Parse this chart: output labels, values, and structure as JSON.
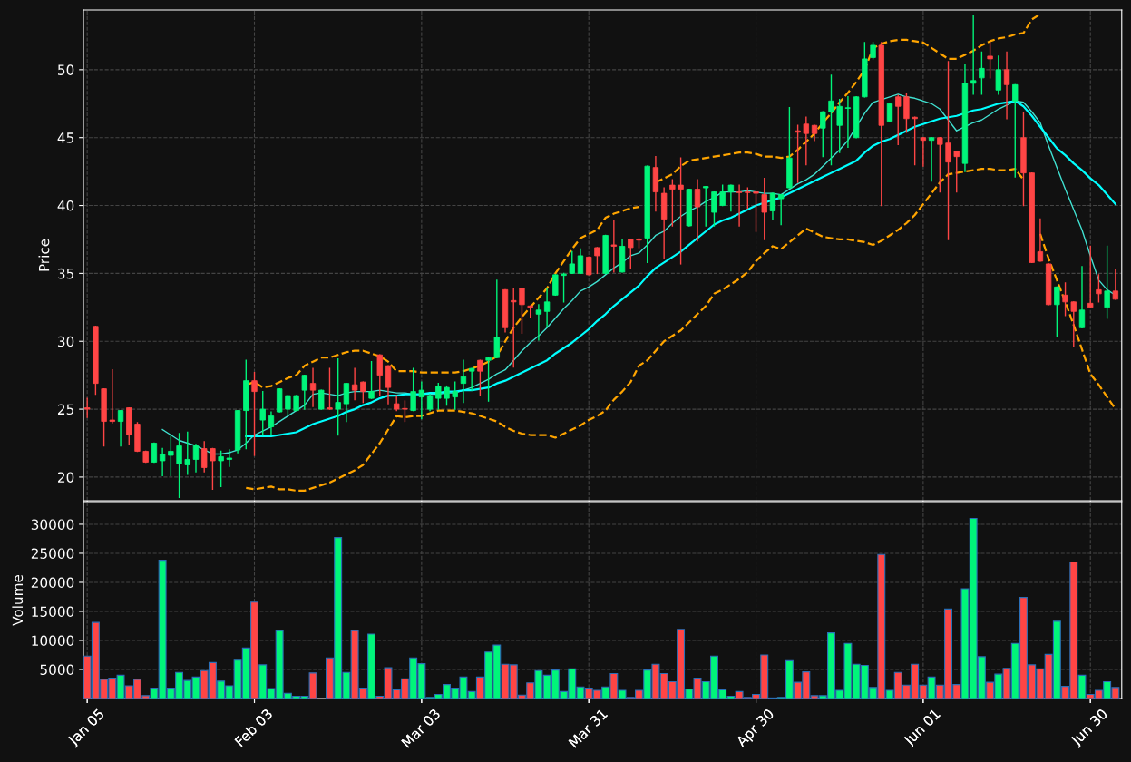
{
  "chart_data": [
    {
      "type": "candlestick",
      "ylabel": "Price",
      "categories": [
        "Jan 05",
        null,
        null,
        null,
        null,
        null,
        null,
        null,
        null,
        null,
        null,
        null,
        null,
        null,
        null,
        null,
        null,
        null,
        null,
        null,
        "Feb 03",
        null,
        null,
        null,
        null,
        null,
        null,
        null,
        null,
        null,
        null,
        null,
        null,
        null,
        null,
        null,
        null,
        null,
        null,
        null,
        "Mar 03",
        null,
        null,
        null,
        null,
        null,
        null,
        null,
        null,
        null,
        null,
        null,
        null,
        null,
        null,
        null,
        null,
        null,
        null,
        null,
        "Mar 31",
        null,
        null,
        null,
        null,
        null,
        null,
        null,
        null,
        null,
        null,
        null,
        null,
        null,
        null,
        null,
        null,
        null,
        null,
        null,
        "Apr 30",
        null,
        null,
        null,
        null,
        null,
        null,
        null,
        null,
        null,
        null,
        null,
        null,
        null,
        null,
        null,
        null,
        null,
        null,
        null,
        "Jun 01",
        null,
        null,
        null,
        null,
        null,
        null,
        null,
        null,
        null,
        null,
        null,
        null,
        null,
        null,
        null,
        null,
        null,
        null,
        null,
        "Jun 30",
        null,
        null,
        null
      ],
      "ohlc": [
        [
          25.1,
          25.8,
          24.4,
          25.0
        ],
        [
          31.1,
          31.1,
          26.1,
          26.9
        ],
        [
          26.5,
          26.5,
          22.3,
          24.1
        ],
        [
          24.2,
          27.9,
          24.0,
          24.1
        ],
        [
          24.1,
          24.9,
          22.3,
          24.9
        ],
        [
          25.1,
          25.1,
          22.4,
          23.1
        ],
        [
          23.9,
          24.0,
          21.9,
          21.9
        ],
        [
          21.9,
          21.9,
          21.1,
          21.1
        ],
        [
          21.1,
          22.5,
          21.1,
          22.5
        ],
        [
          21.2,
          22.1,
          20.1,
          21.7
        ],
        [
          21.6,
          23.0,
          20.1,
          21.9
        ],
        [
          21.0,
          23.2,
          18.5,
          22.3
        ],
        [
          20.9,
          23.3,
          20.2,
          21.3
        ],
        [
          21.3,
          22.4,
          20.4,
          22.3
        ],
        [
          22.1,
          22.6,
          20.4,
          20.7
        ],
        [
          22.1,
          22.1,
          19.1,
          21.2
        ],
        [
          21.2,
          21.9,
          19.3,
          21.5
        ],
        [
          21.3,
          22.0,
          20.8,
          21.4
        ],
        [
          22.0,
          24.9,
          21.8,
          24.9
        ],
        [
          24.9,
          28.6,
          22.1,
          27.1
        ],
        [
          27.1,
          27.7,
          21.6,
          26.3
        ],
        [
          24.2,
          26.3,
          23.1,
          25.0
        ],
        [
          23.7,
          24.8,
          23.1,
          24.5
        ],
        [
          24.8,
          26.5,
          24.8,
          26.5
        ],
        [
          25.0,
          26.0,
          24.6,
          26.0
        ],
        [
          24.9,
          26.0,
          24.9,
          26.0
        ],
        [
          26.4,
          27.5,
          25.0,
          27.5
        ],
        [
          26.9,
          28.0,
          25.2,
          26.4
        ],
        [
          25.0,
          26.4,
          25.0,
          26.4
        ],
        [
          25.1,
          28.0,
          25.0,
          25.0
        ],
        [
          25.0,
          28.7,
          23.1,
          25.5
        ],
        [
          25.4,
          26.9,
          24.1,
          26.9
        ],
        [
          26.8,
          28.0,
          25.7,
          26.4
        ],
        [
          27.0,
          27.0,
          25.5,
          26.3
        ],
        [
          25.8,
          28.5,
          25.8,
          26.3
        ],
        [
          29.0,
          29.0,
          26.0,
          27.5
        ],
        [
          28.2,
          28.2,
          25.4,
          26.6
        ],
        [
          25.4,
          26.0,
          24.9,
          25.0
        ],
        [
          25.05,
          25.6,
          24.1,
          25.0
        ],
        [
          24.9,
          28.0,
          24.9,
          26.3
        ],
        [
          25.9,
          27.0,
          24.3,
          26.4
        ],
        [
          25.0,
          26.1,
          24.9,
          26.0
        ],
        [
          25.8,
          26.9,
          25.0,
          26.7
        ],
        [
          25.8,
          26.7,
          25.3,
          26.6
        ],
        [
          25.9,
          27.0,
          25.0,
          26.3
        ],
        [
          26.9,
          28.6,
          25.5,
          27.4
        ],
        [
          27.8,
          28.0,
          26.4,
          28.0
        ],
        [
          28.6,
          28.6,
          26.0,
          27.8
        ],
        [
          28.6,
          28.8,
          25.6,
          28.8
        ],
        [
          28.8,
          34.5,
          28.8,
          30.3
        ],
        [
          33.8,
          33.8,
          30.7,
          31.0
        ],
        [
          33.0,
          33.9,
          28.1,
          32.9
        ],
        [
          33.9,
          33.9,
          30.6,
          32.7
        ],
        [
          32.6,
          32.6,
          31.8,
          32.5
        ],
        [
          32.0,
          32.7,
          30.1,
          32.3
        ],
        [
          32.2,
          33.9,
          31.1,
          32.9
        ],
        [
          33.4,
          34.9,
          33.4,
          34.9
        ],
        [
          34.85,
          35.0,
          32.9,
          34.95
        ],
        [
          35.0,
          36.6,
          35.0,
          35.7
        ],
        [
          35.0,
          36.8,
          35.0,
          36.3
        ],
        [
          36.2,
          36.2,
          34.9,
          34.9
        ],
        [
          36.9,
          36.9,
          35.0,
          36.3
        ],
        [
          35.0,
          37.8,
          35.0,
          37.8
        ],
        [
          37.1,
          38.9,
          35.1,
          37.0
        ],
        [
          35.1,
          37.5,
          35.1,
          37.0
        ],
        [
          37.5,
          37.5,
          35.4,
          36.9
        ],
        [
          37.5,
          37.55,
          36.9,
          37.45
        ],
        [
          37.6,
          42.9,
          35.8,
          42.9
        ],
        [
          42.8,
          43.6,
          39.6,
          41.0
        ],
        [
          40.9,
          41.3,
          36.1,
          39.0
        ],
        [
          41.5,
          41.9,
          38.5,
          41.2
        ],
        [
          41.5,
          43.5,
          35.7,
          41.2
        ],
        [
          38.5,
          41.2,
          38.5,
          41.2
        ],
        [
          41.2,
          41.9,
          37.4,
          39.9
        ],
        [
          41.3,
          41.4,
          38.5,
          41.4
        ],
        [
          39.5,
          41.0,
          38.5,
          41.0
        ],
        [
          40.0,
          41.5,
          40.0,
          41.0
        ],
        [
          41.0,
          41.5,
          39.6,
          41.5
        ],
        [
          41.0,
          41.5,
          38.5,
          40.95
        ],
        [
          41.0,
          41.3,
          39.8,
          40.95
        ],
        [
          41.0,
          41.0,
          38.1,
          40.9
        ],
        [
          40.8,
          42.0,
          37.5,
          39.5
        ],
        [
          39.6,
          40.9,
          39.0,
          40.9
        ],
        [
          40.5,
          40.8,
          38.6,
          40.8
        ],
        [
          41.3,
          47.2,
          41.3,
          43.5
        ],
        [
          45.5,
          45.9,
          41.7,
          45.4
        ],
        [
          46.0,
          46.5,
          43.0,
          45.3
        ],
        [
          45.9,
          45.9,
          44.8,
          45.3
        ],
        [
          45.7,
          46.9,
          43.6,
          46.9
        ],
        [
          46.9,
          49.6,
          43.0,
          47.7
        ],
        [
          45.9,
          47.8,
          43.9,
          47.3
        ],
        [
          47.15,
          48.0,
          44.3,
          47.2
        ],
        [
          45.0,
          48.0,
          45.0,
          48.0
        ],
        [
          48.0,
          52.0,
          48.0,
          50.8
        ],
        [
          50.9,
          52.0,
          50.8,
          51.8
        ],
        [
          51.8,
          52.0,
          40.0,
          45.9
        ],
        [
          46.2,
          47.5,
          46.2,
          47.5
        ],
        [
          48.0,
          48.1,
          44.5,
          47.3
        ],
        [
          48.0,
          48.2,
          45.4,
          46.4
        ],
        [
          46.5,
          46.5,
          43.0,
          46.4
        ],
        [
          45.0,
          45.0,
          42.9,
          44.8
        ],
        [
          44.8,
          45.0,
          41.8,
          45.0
        ],
        [
          45.0,
          45.0,
          41.0,
          44.5
        ],
        [
          44.6,
          50.6,
          37.5,
          43.2
        ],
        [
          44.0,
          44.0,
          41.0,
          43.6
        ],
        [
          43.1,
          50.4,
          42.5,
          49.0
        ],
        [
          49.0,
          54.0,
          48.2,
          49.2
        ],
        [
          49.4,
          51.3,
          48.2,
          50.1
        ],
        [
          51.0,
          52.0,
          49.4,
          50.8
        ],
        [
          48.5,
          51.0,
          48.2,
          50.0
        ],
        [
          50.0,
          51.3,
          46.4,
          48.9
        ],
        [
          47.7,
          48.9,
          42.1,
          48.9
        ],
        [
          45.0,
          46.8,
          40.0,
          42.4
        ],
        [
          42.4,
          42.4,
          35.8,
          35.8
        ],
        [
          36.6,
          39.0,
          35.9,
          35.9
        ],
        [
          35.7,
          35.7,
          32.7,
          32.7
        ],
        [
          32.7,
          34.0,
          30.4,
          34.0
        ],
        [
          33.4,
          34.3,
          31.9,
          32.9
        ],
        [
          32.9,
          32.9,
          29.6,
          32.2
        ],
        [
          31.0,
          35.5,
          31.0,
          32.3
        ],
        [
          32.8,
          37.0,
          32.5,
          32.5
        ],
        [
          33.8,
          34.9,
          32.9,
          33.5
        ],
        [
          32.5,
          37.0,
          31.7,
          33.7
        ],
        [
          33.7,
          35.3,
          33.1,
          33.1
        ]
      ],
      "colors": [
        "#ff4545",
        "#ff4545",
        "#ff4545",
        "#ff4545",
        "#00f57a",
        "#ff4545",
        "#ff4545",
        "#ff4545",
        "#00f57a",
        "#00f57a",
        "#00f57a",
        "#00f57a",
        "#00f57a",
        "#00f57a",
        "#ff4545",
        "#ff4545",
        "#00f57a",
        "#00f57a",
        "#00f57a",
        "#00f57a",
        "#ff4545",
        "#00f57a",
        "#00f57a",
        "#00f57a",
        "#00f57a",
        "#00f57a",
        "#00f57a",
        "#ff4545",
        "#00f57a",
        "#ff4545",
        "#00f57a",
        "#00f57a",
        "#ff4545",
        "#ff4545",
        "#00f57a",
        "#ff4545",
        "#ff4545",
        "#ff4545",
        "#ff4545",
        "#00f57a",
        "#00f57a",
        "#00f57a",
        "#00f57a",
        "#00f57a",
        "#00f57a",
        "#00f57a",
        "#00f57a",
        "#ff4545",
        "#00f57a",
        "#00f57a",
        "#ff4545",
        "#ff4545",
        "#ff4545",
        "#ff4545",
        "#00f57a",
        "#00f57a",
        "#00f57a",
        "#00f57a",
        "#00f57a",
        "#00f57a",
        "#ff4545",
        "#ff4545",
        "#00f57a",
        "#ff4545",
        "#00f57a",
        "#ff4545",
        "#ff4545",
        "#00f57a",
        "#ff4545",
        "#ff4545",
        "#ff4545",
        "#ff4545",
        "#00f57a",
        "#ff4545",
        "#00f57a",
        "#00f57a",
        "#00f57a",
        "#00f57a",
        "#ff4545",
        "#ff4545",
        "#ff4545",
        "#ff4545",
        "#00f57a",
        "#00f57a",
        "#00f57a",
        "#ff4545",
        "#ff4545",
        "#ff4545",
        "#00f57a",
        "#00f57a",
        "#00f57a",
        "#00f57a",
        "#00f57a",
        "#00f57a",
        "#00f57a",
        "#ff4545",
        "#00f57a",
        "#ff4545",
        "#ff4545",
        "#ff4545",
        "#ff4545",
        "#00f57a",
        "#ff4545",
        "#ff4545",
        "#ff4545",
        "#00f57a",
        "#00f57a",
        "#00f57a",
        "#ff4545",
        "#00f57a",
        "#ff4545",
        "#00f57a",
        "#ff4545",
        "#ff4545",
        "#ff4545",
        "#ff4545",
        "#00f57a",
        "#ff4545",
        "#ff4545",
        "#00f57a",
        "#ff4545",
        "#ff4545",
        "#00f57a",
        "#ff4545"
      ],
      "series": [
        {
          "type": "line",
          "color": "#40e0d0",
          "line_style": "solid",
          "values": [
            null,
            null,
            null,
            null,
            null,
            null,
            null,
            null,
            null,
            23.5,
            23.1,
            22.7,
            22.5,
            22.3,
            22.0,
            21.7,
            21.7,
            21.8,
            22.0,
            22.5,
            23.1,
            23.4,
            23.7,
            24.1,
            24.5,
            24.9,
            25.3,
            26.1,
            26.2,
            26.1,
            26.0,
            26.2,
            26.3,
            26.3,
            26.3,
            26.4,
            26.3,
            26.2,
            26.2,
            26.1,
            26.1,
            26.1,
            26.1,
            26.2,
            26.2,
            26.4,
            26.6,
            26.9,
            27.2,
            27.6,
            27.9,
            28.6,
            29.3,
            29.9,
            30.4,
            31.0,
            31.7,
            32.4,
            33.0,
            33.7,
            34.0,
            34.4,
            34.9,
            35.4,
            35.8,
            36.3,
            36.5,
            37.1,
            37.8,
            38.1,
            38.7,
            39.2,
            39.6,
            39.9,
            40.3,
            40.6,
            41.0,
            41.0,
            41.0,
            41.1,
            41.0,
            40.9,
            40.9,
            40.8,
            41.2,
            41.6,
            41.9,
            42.3,
            42.9,
            43.5,
            44.1,
            44.8,
            45.8,
            46.8,
            47.6,
            47.8,
            48.0,
            48.2,
            48.0,
            47.9,
            47.7,
            47.5,
            47.1,
            46.3,
            45.5,
            45.8,
            46.1,
            46.3,
            46.7,
            47.1,
            47.4,
            47.7,
            47.6,
            46.9,
            46.1,
            44.4,
            42.8,
            41.2,
            39.7,
            38.2,
            36.3,
            34.5,
            33.8,
            33.4
          ]
        },
        {
          "type": "line",
          "color": "#00ffff",
          "line_style": "solid",
          "values": [
            null,
            null,
            null,
            null,
            null,
            null,
            null,
            null,
            null,
            null,
            null,
            null,
            null,
            null,
            null,
            null,
            null,
            null,
            null,
            23.0,
            23.0,
            23.0,
            23.0,
            23.1,
            23.2,
            23.3,
            23.6,
            23.9,
            24.1,
            24.3,
            24.5,
            24.8,
            25.0,
            25.3,
            25.5,
            25.8,
            26.0,
            26.0,
            26.1,
            26.1,
            26.1,
            26.2,
            26.2,
            26.3,
            26.3,
            26.4,
            26.4,
            26.5,
            26.6,
            26.9,
            27.1,
            27.4,
            27.7,
            28.0,
            28.3,
            28.6,
            29.1,
            29.5,
            29.9,
            30.4,
            30.9,
            31.5,
            32.0,
            32.6,
            33.1,
            33.6,
            34.1,
            34.8,
            35.4,
            35.8,
            36.2,
            36.6,
            37.1,
            37.6,
            38.1,
            38.6,
            38.9,
            39.1,
            39.4,
            39.7,
            40.0,
            40.2,
            40.4,
            40.6,
            40.9,
            41.2,
            41.5,
            41.8,
            42.1,
            42.4,
            42.7,
            43.0,
            43.3,
            43.9,
            44.4,
            44.7,
            44.9,
            45.2,
            45.5,
            45.8,
            46.0,
            46.2,
            46.4,
            46.5,
            46.6,
            46.8,
            47.0,
            47.1,
            47.3,
            47.5,
            47.6,
            47.7,
            47.3,
            46.6,
            45.8,
            45.0,
            44.2,
            43.7,
            43.1,
            42.6,
            42.0,
            41.5,
            40.8,
            40.1
          ]
        },
        {
          "type": "line",
          "color": "#ffa500",
          "line_style": "dashed",
          "values": [
            null,
            null,
            null,
            null,
            null,
            null,
            null,
            null,
            null,
            null,
            null,
            null,
            null,
            null,
            null,
            null,
            null,
            null,
            null,
            26.8,
            27.0,
            26.6,
            26.7,
            27.0,
            27.3,
            27.5,
            28.2,
            28.5,
            28.8,
            28.8,
            29.0,
            29.2,
            29.3,
            29.3,
            29.1,
            28.9,
            28.5,
            27.8,
            27.8,
            27.8,
            27.7,
            27.7,
            27.7,
            27.7,
            27.7,
            27.8,
            28.0,
            28.2,
            28.5,
            28.9,
            30.0,
            31.0,
            31.8,
            32.5,
            33.2,
            33.9,
            35.0,
            35.9,
            36.8,
            37.6,
            37.9,
            38.2,
            39.1,
            39.4,
            39.6,
            39.8,
            39.9,
            null,
            41.7,
            42.0,
            42.3,
            42.9,
            43.3,
            43.4,
            43.5,
            43.6,
            43.7,
            43.8,
            43.9,
            43.9,
            43.8,
            43.6,
            43.6,
            43.5,
            43.6,
            44.1,
            44.7,
            45.3,
            46.1,
            46.8,
            47.6,
            48.3,
            49.1,
            50.0,
            51.6,
            51.9,
            52.1,
            52.2,
            52.2,
            52.1,
            52.0,
            51.6,
            51.2,
            50.8,
            50.8,
            51.1,
            51.4,
            51.8,
            52.1,
            52.3,
            52.4,
            52.6,
            52.7,
            53.7,
            54.1,
            null,
            null,
            null,
            null,
            null,
            null,
            null,
            null,
            null
          ]
        },
        {
          "type": "line",
          "color": "#ffa500",
          "line_style": "dashed",
          "values": [
            null,
            null,
            null,
            null,
            null,
            null,
            null,
            null,
            null,
            null,
            null,
            null,
            null,
            null,
            null,
            null,
            null,
            null,
            null,
            19.2,
            19.1,
            19.2,
            19.3,
            19.1,
            19.1,
            19.0,
            19.0,
            19.2,
            19.4,
            19.6,
            19.9,
            20.2,
            20.5,
            20.9,
            21.7,
            22.5,
            23.5,
            24.5,
            24.4,
            24.5,
            24.5,
            24.7,
            24.9,
            24.9,
            24.9,
            24.8,
            24.7,
            24.5,
            24.3,
            24.1,
            23.7,
            23.4,
            23.2,
            23.1,
            23.1,
            23.1,
            22.9,
            23.2,
            23.5,
            23.8,
            24.2,
            24.5,
            24.9,
            25.7,
            26.3,
            27.0,
            28.2,
            28.6,
            29.3,
            30.0,
            30.4,
            30.8,
            31.4,
            32.0,
            32.6,
            33.5,
            33.8,
            34.2,
            34.6,
            35.1,
            35.9,
            36.5,
            37.0,
            36.8,
            37.3,
            37.8,
            38.3,
            38.0,
            37.7,
            37.6,
            37.5,
            37.5,
            37.4,
            37.3,
            37.1,
            37.4,
            37.8,
            38.2,
            38.7,
            39.3,
            40.1,
            40.9,
            41.7,
            42.3,
            42.4,
            42.5,
            42.6,
            42.7,
            42.7,
            42.6,
            42.6,
            42.7,
            41.9,
            null,
            37.9,
            36.1,
            34.5,
            32.9,
            31.2,
            29.4,
            27.6,
            26.8,
            25.9,
            25.0
          ]
        }
      ],
      "ylim": [
        18.26,
        54.4
      ],
      "yticks": [
        20,
        25,
        30,
        35,
        40,
        45,
        50
      ],
      "grid": true,
      "tick_labels": "y"
    },
    {
      "type": "bar",
      "ylabel": "Volume",
      "categories": [
        "Jan 05",
        null,
        null,
        null,
        null,
        null,
        null,
        null,
        null,
        null,
        null,
        null,
        null,
        null,
        null,
        null,
        null,
        null,
        null,
        null,
        "Feb 03",
        null,
        null,
        null,
        null,
        null,
        null,
        null,
        null,
        null,
        null,
        null,
        null,
        null,
        null,
        null,
        null,
        null,
        null,
        null,
        "Mar 03",
        null,
        null,
        null,
        null,
        null,
        null,
        null,
        null,
        null,
        null,
        null,
        null,
        null,
        null,
        null,
        null,
        null,
        null,
        null,
        "Mar 31",
        null,
        null,
        null,
        null,
        null,
        null,
        null,
        null,
        null,
        null,
        null,
        null,
        null,
        null,
        null,
        null,
        null,
        null,
        null,
        "Apr 30",
        null,
        null,
        null,
        null,
        null,
        null,
        null,
        null,
        null,
        null,
        null,
        null,
        null,
        null,
        null,
        null,
        null,
        null,
        null,
        "Jun 01",
        null,
        null,
        null,
        null,
        null,
        null,
        null,
        null,
        null,
        null,
        null,
        null,
        null,
        null,
        null,
        null,
        null,
        null,
        null,
        "Jun 30",
        null,
        null,
        null
      ],
      "values": [
        7300,
        13100,
        3300,
        3500,
        4000,
        2200,
        3300,
        500,
        1800,
        23800,
        1800,
        4500,
        3100,
        3700,
        4800,
        6200,
        3000,
        2200,
        6600,
        8700,
        16600,
        5800,
        1700,
        11700,
        900,
        400,
        400,
        4400,
        null,
        7000,
        27700,
        4500,
        11700,
        1800,
        11100,
        400,
        5300,
        1500,
        3400,
        7000,
        6000,
        200,
        700,
        2400,
        1800,
        3700,
        1200,
        3700,
        8000,
        9200,
        5900,
        5800,
        600,
        2700,
        4800,
        4000,
        4900,
        1200,
        5100,
        2000,
        1800,
        1400,
        2000,
        4300,
        1400,
        200,
        1400,
        4900,
        5900,
        4300,
        2900,
        11900,
        1600,
        3500,
        2900,
        7300,
        1500,
        400,
        1200,
        200,
        700,
        7500,
        100,
        200,
        6500,
        2800,
        4600,
        500,
        500,
        11300,
        1400,
        9500,
        5900,
        5700,
        1900,
        24800,
        1400,
        4500,
        2300,
        5900,
        2300,
        3700,
        2300,
        15400,
        2400,
        18900,
        31000,
        7200,
        2800,
        4200,
        5200,
        9500,
        17400,
        5800,
        5100,
        7600,
        13300,
        2100,
        23500,
        4000,
        700,
        1400,
        2900,
        1900
      ],
      "colors": [
        "#ff4545",
        "#ff4545",
        "#ff4545",
        "#ff4545",
        "#00f57a",
        "#ff4545",
        "#ff4545",
        "#ff4545",
        "#00f57a",
        "#00f57a",
        "#00f57a",
        "#00f57a",
        "#00f57a",
        "#00f57a",
        "#ff4545",
        "#ff4545",
        "#00f57a",
        "#00f57a",
        "#00f57a",
        "#00f57a",
        "#ff4545",
        "#00f57a",
        "#00f57a",
        "#00f57a",
        "#00f57a",
        "#00f57a",
        "#00f57a",
        "#ff4545",
        "#00f57a",
        "#ff4545",
        "#00f57a",
        "#00f57a",
        "#ff4545",
        "#ff4545",
        "#00f57a",
        "#ff4545",
        "#ff4545",
        "#ff4545",
        "#ff4545",
        "#00f57a",
        "#00f57a",
        "#00f57a",
        "#00f57a",
        "#00f57a",
        "#00f57a",
        "#00f57a",
        "#00f57a",
        "#ff4545",
        "#00f57a",
        "#00f57a",
        "#ff4545",
        "#ff4545",
        "#ff4545",
        "#ff4545",
        "#00f57a",
        "#00f57a",
        "#00f57a",
        "#00f57a",
        "#00f57a",
        "#00f57a",
        "#ff4545",
        "#ff4545",
        "#00f57a",
        "#ff4545",
        "#00f57a",
        "#ff4545",
        "#ff4545",
        "#00f57a",
        "#ff4545",
        "#ff4545",
        "#ff4545",
        "#ff4545",
        "#00f57a",
        "#ff4545",
        "#00f57a",
        "#00f57a",
        "#00f57a",
        "#00f57a",
        "#ff4545",
        "#ff4545",
        "#ff4545",
        "#ff4545",
        "#00f57a",
        "#00f57a",
        "#00f57a",
        "#ff4545",
        "#ff4545",
        "#ff4545",
        "#00f57a",
        "#00f57a",
        "#00f57a",
        "#00f57a",
        "#00f57a",
        "#00f57a",
        "#00f57a",
        "#ff4545",
        "#00f57a",
        "#ff4545",
        "#ff4545",
        "#ff4545",
        "#ff4545",
        "#00f57a",
        "#ff4545",
        "#ff4545",
        "#ff4545",
        "#00f57a",
        "#00f57a",
        "#00f57a",
        "#ff4545",
        "#00f57a",
        "#ff4545",
        "#00f57a",
        "#ff4545",
        "#ff4545",
        "#ff4545",
        "#ff4545",
        "#00f57a",
        "#ff4545",
        "#ff4545",
        "#00f57a",
        "#ff4545",
        "#ff4545",
        "#00f57a",
        "#ff4545"
      ],
      "ylim": [
        0,
        33900
      ],
      "yticks": [
        5000,
        10000,
        15000,
        20000,
        25000,
        30000
      ],
      "grid": true
    }
  ]
}
